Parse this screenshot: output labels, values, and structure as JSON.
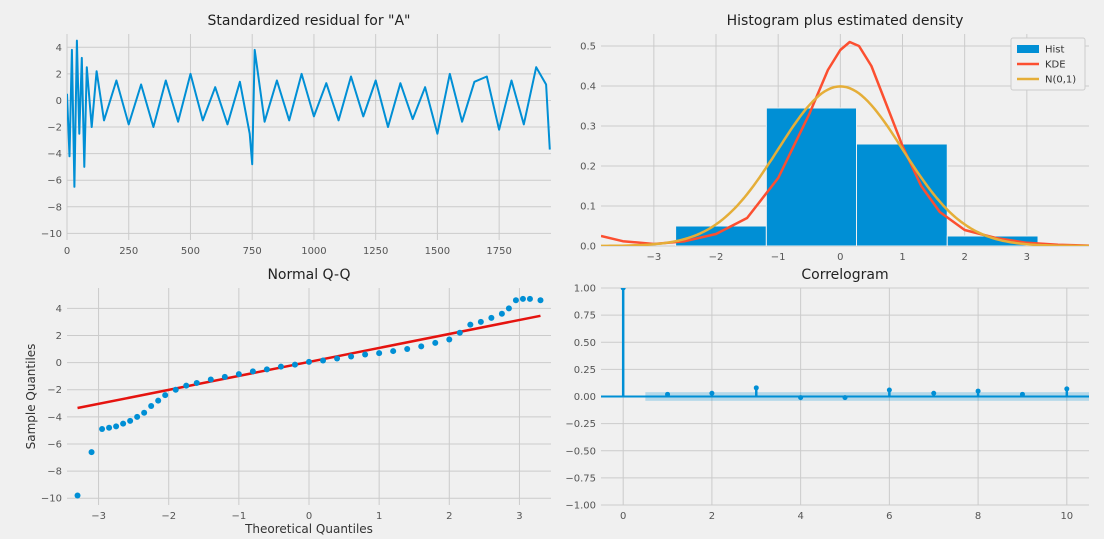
{
  "chart_data": [
    {
      "type": "line",
      "title": "Standardized residual for \"A\"",
      "xlabel": "",
      "ylabel": "",
      "xlim": [
        0,
        1960
      ],
      "ylim": [
        -10.5,
        5
      ],
      "xticks": [
        0,
        250,
        500,
        750,
        1000,
        1250,
        1500,
        1750
      ],
      "yticks": [
        -10,
        -8,
        -6,
        -4,
        -2,
        0,
        2,
        4
      ],
      "grid": true,
      "colors": {
        "line": "#008fd5"
      },
      "series": [
        {
          "x": [
            0,
            10,
            20,
            30,
            40,
            50,
            60,
            70,
            80,
            100,
            120,
            150,
            200,
            250,
            300,
            350,
            400,
            450,
            500,
            550,
            600,
            650,
            700,
            740,
            750,
            760,
            800,
            850,
            900,
            950,
            1000,
            1050,
            1100,
            1150,
            1200,
            1250,
            1300,
            1350,
            1400,
            1450,
            1500,
            1550,
            1600,
            1650,
            1700,
            1750,
            1800,
            1850,
            1900,
            1940,
            1955
          ],
          "y": [
            0.5,
            -4.2,
            3.8,
            -6.5,
            4.5,
            -2.5,
            3.2,
            -5.0,
            2.5,
            -2.0,
            2.2,
            -1.5,
            1.5,
            -1.8,
            1.2,
            -2.0,
            1.5,
            -1.6,
            2.0,
            -1.5,
            1.0,
            -1.8,
            1.4,
            -2.5,
            -4.8,
            3.8,
            -1.6,
            1.5,
            -1.5,
            2.0,
            -1.2,
            1.3,
            -1.5,
            1.8,
            -1.2,
            1.5,
            -2.0,
            1.3,
            -1.4,
            1.0,
            -2.5,
            2.0,
            -1.6,
            1.4,
            1.8,
            -2.2,
            1.5,
            -1.8,
            2.5,
            1.2,
            -3.7
          ]
        }
      ]
    },
    {
      "type": "bar",
      "title": "Histogram plus estimated density",
      "xlim": [
        -3.85,
        4.0
      ],
      "ylim": [
        0,
        0.53
      ],
      "xticks": [
        -3,
        -2,
        -1,
        0,
        1,
        2,
        3
      ],
      "yticks": [
        0.0,
        0.1,
        0.2,
        0.3,
        0.4,
        0.5
      ],
      "grid": true,
      "legend": {
        "position": "top-right",
        "entries": [
          "Hist",
          "KDE",
          "N(0,1)"
        ]
      },
      "colors": {
        "hist": "#008fd5",
        "kde": "#fc4f30",
        "normal": "#e5ae38"
      },
      "bins": [
        {
          "x0": -2.65,
          "x1": -1.19,
          "value": 0.05
        },
        {
          "x0": -1.19,
          "x1": 0.26,
          "value": 0.345
        },
        {
          "x0": 0.26,
          "x1": 1.72,
          "value": 0.255
        },
        {
          "x0": 1.72,
          "x1": 3.18,
          "value": 0.025
        }
      ],
      "kde": {
        "x": [
          -3.85,
          -3.5,
          -3.0,
          -2.5,
          -2.0,
          -1.5,
          -1.0,
          -0.5,
          -0.2,
          0.0,
          0.15,
          0.3,
          0.5,
          0.8,
          1.0,
          1.3,
          1.6,
          2.0,
          2.5,
          3.0,
          3.5,
          4.0
        ],
        "y": [
          0.025,
          0.012,
          0.005,
          0.012,
          0.03,
          0.07,
          0.17,
          0.33,
          0.44,
          0.49,
          0.51,
          0.5,
          0.45,
          0.33,
          0.25,
          0.15,
          0.085,
          0.04,
          0.02,
          0.008,
          0.003,
          0.001
        ]
      }
    },
    {
      "type": "scatter",
      "title": "Normal Q-Q",
      "xlabel": "Theoretical Quantiles",
      "ylabel": "Sample Quantiles",
      "xlim": [
        -3.45,
        3.45
      ],
      "ylim": [
        -10.5,
        5.5
      ],
      "xticks": [
        -3,
        -2,
        -1,
        0,
        1,
        2,
        3
      ],
      "yticks": [
        -10,
        -8,
        -6,
        -4,
        -2,
        0,
        2,
        4
      ],
      "grid": true,
      "colors": {
        "points": "#008fd5",
        "line": "#e5130f"
      },
      "series": [
        {
          "name": "",
          "x": [
            -3.3,
            -3.1,
            -2.95,
            -2.85,
            -2.75,
            -2.65,
            -2.55,
            -2.45,
            -2.35,
            -2.25,
            -2.15,
            -2.05,
            -1.9,
            -1.75,
            -1.6,
            -1.4,
            -1.2,
            -1.0,
            -0.8,
            -0.6,
            -0.4,
            -0.2,
            0.0,
            0.2,
            0.4,
            0.6,
            0.8,
            1.0,
            1.2,
            1.4,
            1.6,
            1.8,
            2.0,
            2.15,
            2.3,
            2.45,
            2.6,
            2.75,
            2.85,
            2.95,
            3.05,
            3.15,
            3.3
          ],
          "y": [
            -9.8,
            -6.6,
            -4.9,
            -4.8,
            -4.7,
            -4.5,
            -4.3,
            -4.0,
            -3.7,
            -3.2,
            -2.8,
            -2.4,
            -2.0,
            -1.7,
            -1.5,
            -1.25,
            -1.05,
            -0.85,
            -0.65,
            -0.5,
            -0.3,
            -0.15,
            0.05,
            0.15,
            0.3,
            0.45,
            0.6,
            0.7,
            0.85,
            1.0,
            1.2,
            1.45,
            1.7,
            2.2,
            2.8,
            3.0,
            3.3,
            3.6,
            4.0,
            4.6,
            4.7,
            4.7,
            4.6
          ]
        }
      ],
      "reference_line": {
        "x": [
          -3.3,
          3.3
        ],
        "y": [
          -3.35,
          3.45
        ]
      }
    },
    {
      "type": "bar",
      "title": "Correlogram",
      "xlim": [
        -0.5,
        10.5
      ],
      "ylim": [
        -1.0,
        1.0
      ],
      "xticks": [
        0,
        2,
        4,
        6,
        8,
        10
      ],
      "yticks": [
        -1.0,
        -0.75,
        -0.5,
        -0.25,
        0.0,
        0.25,
        0.5,
        0.75,
        1.0
      ],
      "grid": true,
      "colors": {
        "stems": "#008fd5",
        "band": "#008fd5"
      },
      "lags": [
        0,
        1,
        2,
        3,
        4,
        5,
        6,
        7,
        8,
        9,
        10
      ],
      "values": [
        1.0,
        0.02,
        0.03,
        0.08,
        -0.01,
        -0.01,
        0.06,
        0.03,
        0.05,
        0.02,
        0.07
      ],
      "confidence_band": 0.04
    }
  ]
}
